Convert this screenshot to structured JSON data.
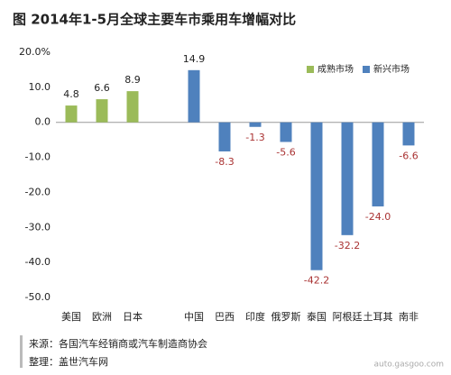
{
  "chart_data": {
    "type": "bar",
    "title": "图  2014年1-5月全球主要车市乘用车增幅对比",
    "categories": [
      "美国",
      "欧洲",
      "日本",
      null,
      "中国",
      "巴西",
      "印度",
      "俄罗斯",
      "泰国",
      "阿根廷",
      "土耳其",
      "南非"
    ],
    "series": [
      {
        "name": "成熟市场",
        "color": "#9bbb59",
        "values": [
          4.8,
          6.6,
          8.9,
          null,
          null,
          null,
          null,
          null,
          null,
          null,
          null,
          null
        ],
        "value_labels": [
          "4.8",
          "6.6",
          "8.9",
          null,
          null,
          null,
          null,
          null,
          null,
          null,
          null,
          null
        ]
      },
      {
        "name": "新兴市场",
        "color": "#4f81bd",
        "values": [
          null,
          null,
          null,
          null,
          14.9,
          -8.3,
          -1.3,
          -5.6,
          -42.2,
          -32.2,
          -24.0,
          -6.6
        ],
        "value_labels": [
          null,
          null,
          null,
          null,
          "14.9",
          "-8.3",
          "-1.3",
          "-5.6",
          "-42.2",
          "-32.2",
          "-24.0",
          "-6.6"
        ]
      }
    ],
    "ylim": [
      -50,
      20
    ],
    "yticks": [
      {
        "value": 20,
        "label": "20.0%"
      },
      {
        "value": 10,
        "label": "10.0"
      },
      {
        "value": 0,
        "label": "0.0"
      },
      {
        "value": -10,
        "label": "-10.0"
      },
      {
        "value": -20,
        "label": "-20.0"
      },
      {
        "value": -30,
        "label": "-30.0"
      },
      {
        "value": -40,
        "label": "-40.0"
      },
      {
        "value": -50,
        "label": "-50.0"
      }
    ],
    "grid": false,
    "legend": "top-right",
    "source": "来源：各国汽车经销商或汽车制造商协会",
    "compiled_by": "整理：盖世汽车网",
    "watermark": "auto.gasgoo.com"
  }
}
